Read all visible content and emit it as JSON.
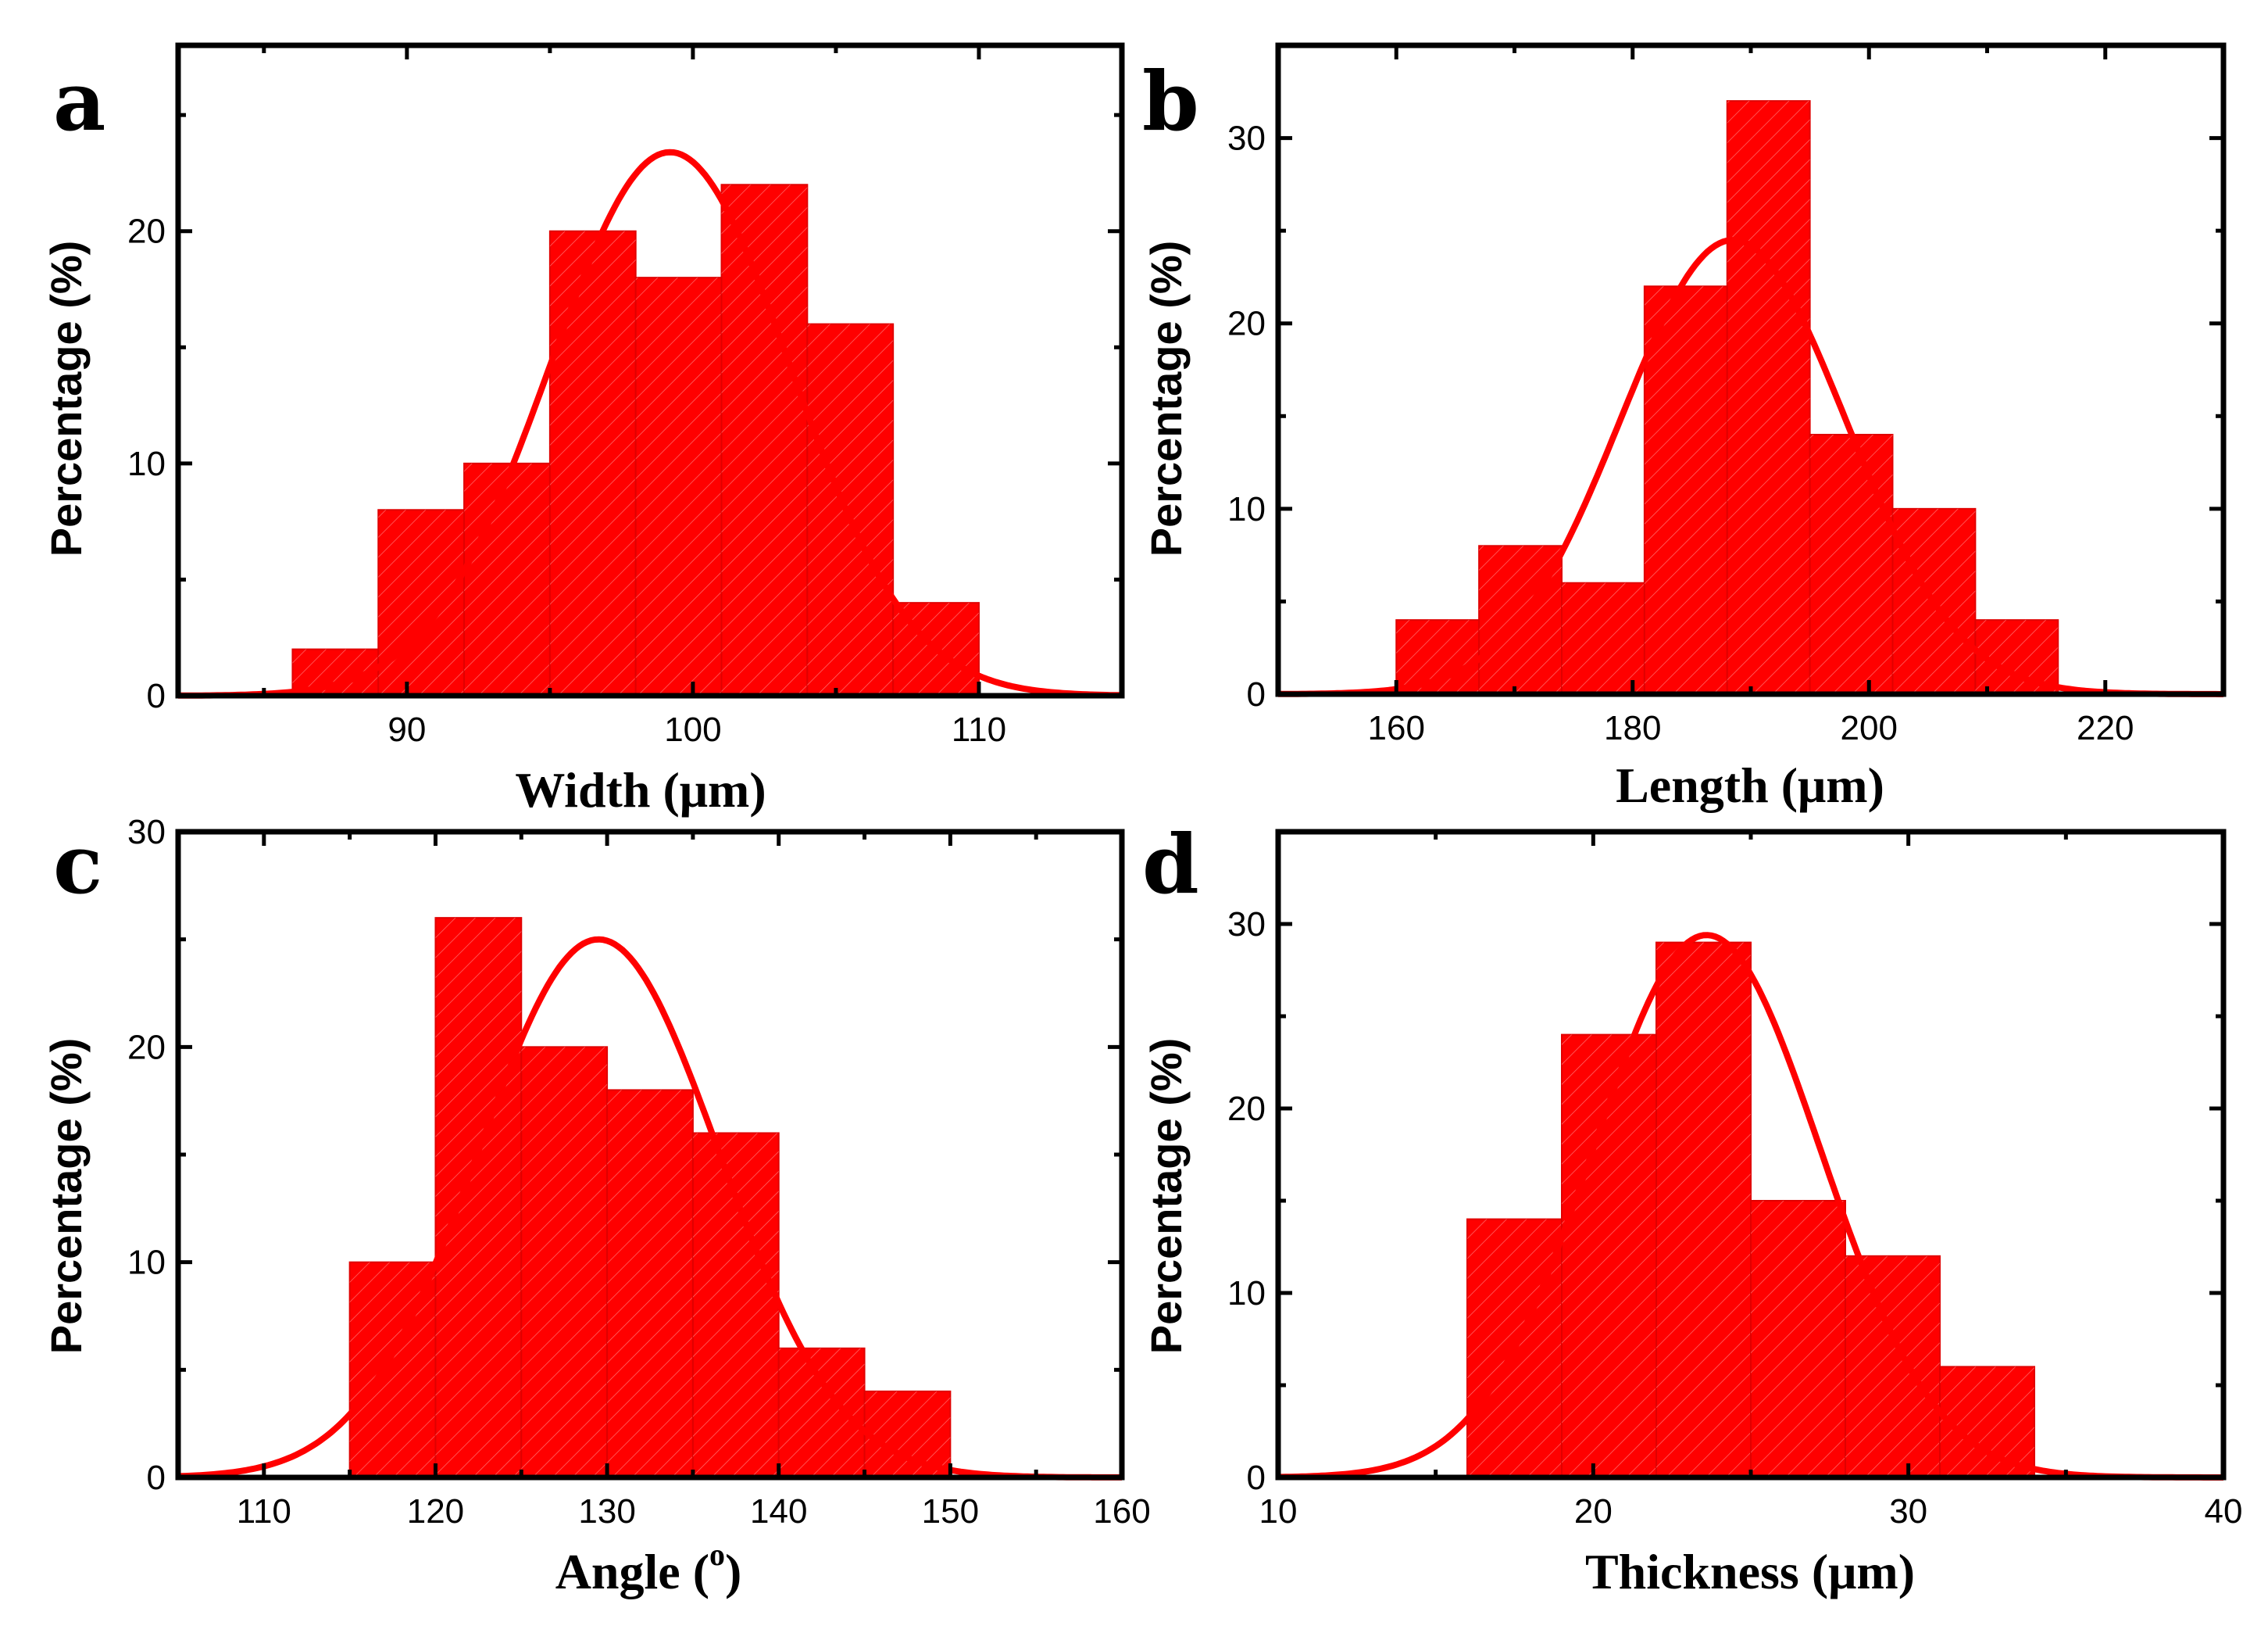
{
  "colors": {
    "bar": "#ff0000",
    "fit": "#ff0000",
    "axis": "#000000"
  },
  "chart_data": [
    {
      "panel": "a",
      "type": "bar",
      "xlabel_text": "Width (",
      "xlabel_unit": "μm",
      "xlabel_close": ")",
      "ylabel": "Percentage (%)",
      "xlim": [
        82,
        115
      ],
      "ylim": [
        0,
        28
      ],
      "xticks": [
        90,
        100,
        110
      ],
      "yticks": [
        0,
        10,
        20
      ],
      "xtick_labels": [
        "90",
        "100",
        "110"
      ],
      "ytick_labels": [
        "0",
        "10",
        "20"
      ],
      "bin_edges": [
        86,
        89,
        92,
        95,
        98,
        101,
        104,
        107,
        110
      ],
      "values": [
        2,
        8,
        10,
        20,
        18,
        22,
        16,
        4
      ],
      "fit": {
        "mean": 99.2,
        "sd": 4.2,
        "peak": 23.4
      }
    },
    {
      "panel": "b",
      "type": "bar",
      "xlabel_text": "Length (",
      "xlabel_unit": "μm",
      "xlabel_close": ")",
      "ylabel": "Percentage (%)",
      "xlim": [
        150,
        230
      ],
      "ylim": [
        0,
        35
      ],
      "xticks": [
        160,
        180,
        200,
        220
      ],
      "yticks": [
        0,
        10,
        20,
        30
      ],
      "xtick_labels": [
        "160",
        "180",
        "200",
        "220"
      ],
      "ytick_labels": [
        "0",
        "10",
        "20",
        "30"
      ],
      "bin_edges": [
        160,
        167,
        174,
        181,
        188,
        195,
        202,
        209,
        216
      ],
      "values": [
        4,
        8,
        6,
        22,
        32,
        14,
        10,
        4
      ],
      "fit": {
        "mean": 188.5,
        "sd": 9.5,
        "peak": 24.5
      }
    },
    {
      "panel": "c",
      "type": "bar",
      "xlabel_text": "Angle (",
      "xlabel_unit": "o",
      "xlabel_close": ")",
      "ylabel": "Percentage (%)",
      "xlim": [
        105,
        160
      ],
      "ylim": [
        0,
        30
      ],
      "xticks": [
        110,
        120,
        130,
        140,
        150,
        160
      ],
      "yticks": [
        0,
        10,
        20,
        30
      ],
      "xtick_labels": [
        "110",
        "120",
        "130",
        "140",
        "150",
        "160"
      ],
      "ytick_labels": [
        "0",
        "10",
        "20",
        "30"
      ],
      "bin_edges": [
        115,
        120,
        125,
        130,
        135,
        140,
        145,
        150
      ],
      "values": [
        10,
        26,
        20,
        18,
        16,
        6,
        4
      ],
      "fit": {
        "mean": 129.5,
        "sd": 7.0,
        "peak": 25.0
      }
    },
    {
      "panel": "d",
      "type": "bar",
      "xlabel_text": "Thickness (",
      "xlabel_unit": "μm",
      "xlabel_close": ")",
      "ylabel": "Percentage (%)",
      "xlim": [
        10,
        40
      ],
      "ylim": [
        0,
        35
      ],
      "xticks": [
        10,
        20,
        30,
        40
      ],
      "yticks": [
        0,
        10,
        20,
        30
      ],
      "xtick_labels": [
        "10",
        "20",
        "30",
        "40"
      ],
      "ytick_labels": [
        "0",
        "10",
        "20",
        "30"
      ],
      "bin_edges": [
        16,
        19,
        22,
        25,
        28,
        31,
        34
      ],
      "values": [
        14,
        24,
        29,
        15,
        12,
        6
      ],
      "fit": {
        "mean": 23.6,
        "sd": 3.6,
        "peak": 29.4
      }
    }
  ]
}
